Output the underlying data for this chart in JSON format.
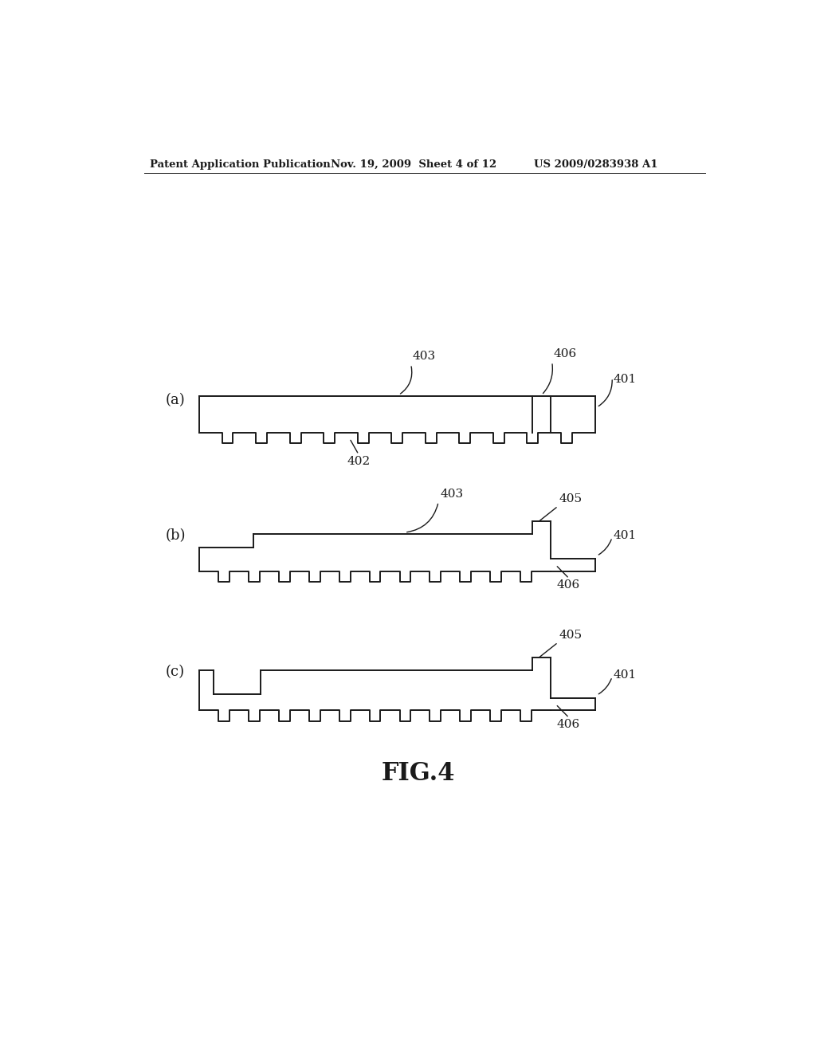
{
  "bg_color": "#ffffff",
  "line_color": "#1a1a1a",
  "header_left": "Patent Application Publication",
  "header_mid": "Nov. 19, 2009  Sheet 4 of 12",
  "header_right": "US 2009/0283938 A1",
  "fig_label": "FIG.4",
  "lw": 1.4
}
